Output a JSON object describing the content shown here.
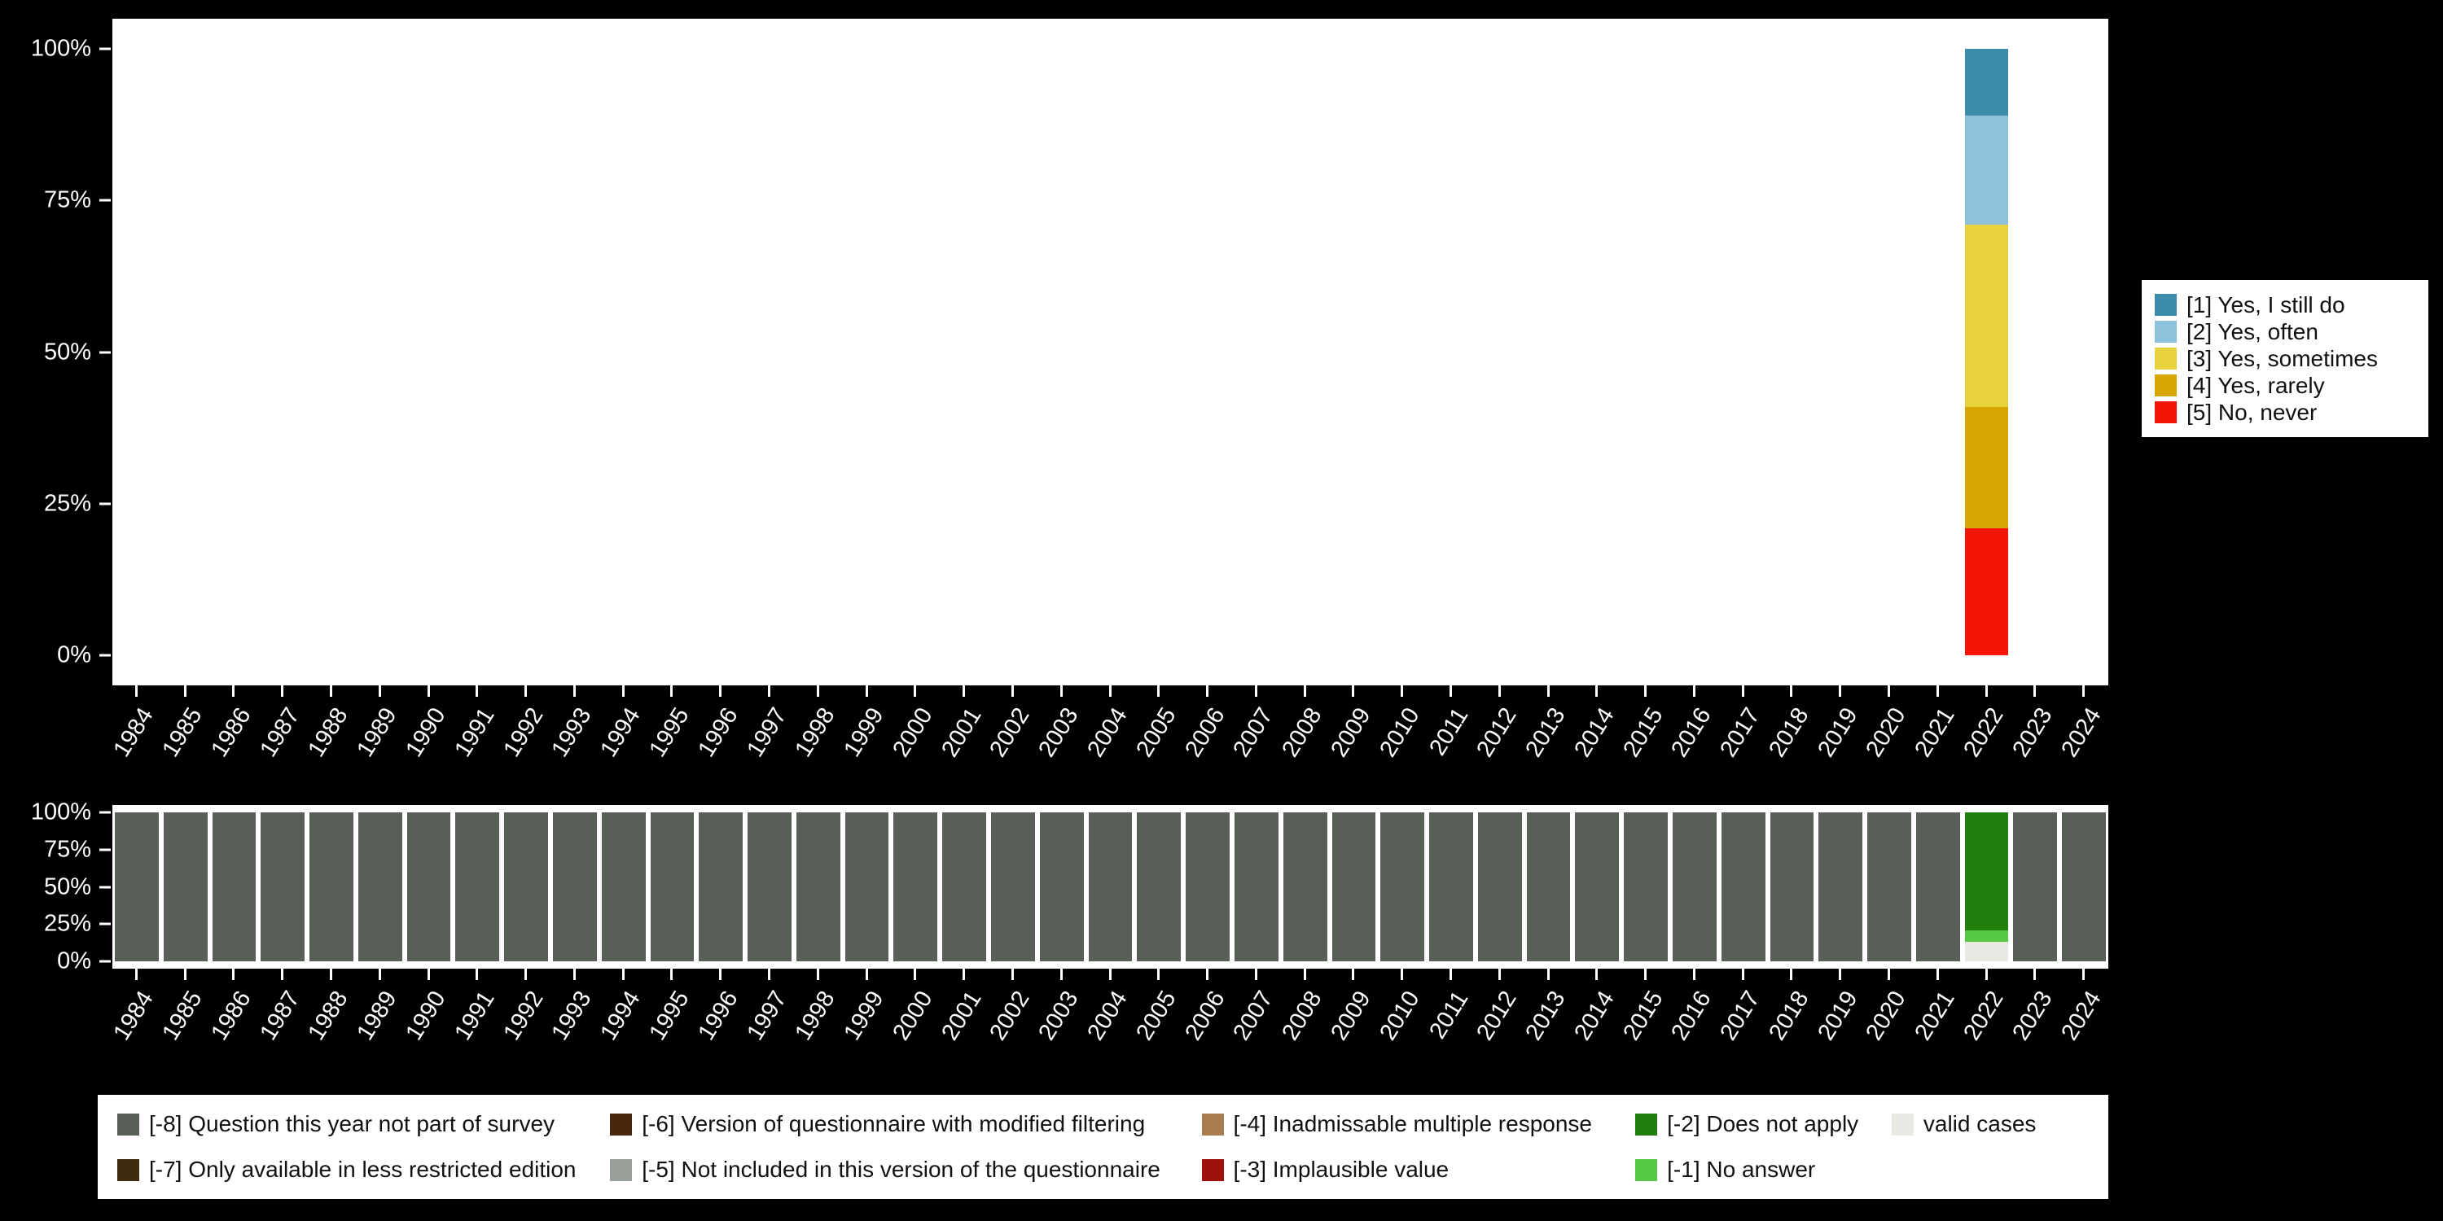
{
  "years": [
    "1984",
    "1985",
    "1986",
    "1987",
    "1988",
    "1989",
    "1990",
    "1991",
    "1992",
    "1993",
    "1994",
    "1995",
    "1996",
    "1997",
    "1998",
    "1999",
    "2000",
    "2001",
    "2002",
    "2003",
    "2004",
    "2005",
    "2006",
    "2007",
    "2008",
    "2009",
    "2010",
    "2011",
    "2012",
    "2013",
    "2014",
    "2015",
    "2016",
    "2017",
    "2018",
    "2019",
    "2020",
    "2021",
    "2022",
    "2023",
    "2024"
  ],
  "chart_data": [
    {
      "type": "bar",
      "stacked": true,
      "title": "",
      "xlabel": "",
      "ylabel": "",
      "ylim": [
        0,
        100
      ],
      "grid": false,
      "legend_position": "right",
      "yticks": [
        {
          "value": 0,
          "label": "0%"
        },
        {
          "value": 25,
          "label": "25%"
        },
        {
          "value": 50,
          "label": "50%"
        },
        {
          "value": 75,
          "label": "75%"
        },
        {
          "value": 100,
          "label": "100%"
        }
      ],
      "series": [
        {
          "name": "[1] Yes, I still do",
          "color": "#3e8cab",
          "values": {
            "2022": 11
          }
        },
        {
          "name": "[2] Yes, often",
          "color": "#8dc3da",
          "values": {
            "2022": 18
          }
        },
        {
          "name": "[3] Yes, sometimes",
          "color": "#e8d23c",
          "values": {
            "2022": 30
          }
        },
        {
          "name": "[4] Yes, rarely",
          "color": "#d5a700",
          "values": {
            "2022": 20
          }
        },
        {
          "name": "[5] No, never",
          "color": "#f31508",
          "values": {
            "2022": 21
          }
        }
      ]
    },
    {
      "type": "bar",
      "stacked": true,
      "title": "",
      "xlabel": "",
      "ylabel": "",
      "ylim": [
        0,
        100
      ],
      "grid": false,
      "legend_position": "bottom",
      "yticks": [
        {
          "value": 0,
          "label": "0%"
        },
        {
          "value": 25,
          "label": "25%"
        },
        {
          "value": 50,
          "label": "50%"
        },
        {
          "value": 75,
          "label": "75%"
        },
        {
          "value": 100,
          "label": "100%"
        }
      ],
      "series": [
        {
          "name": "[-8] Question this year not part of survey",
          "color": "#575f57",
          "values": {
            "default": 100,
            "2022": 0
          }
        },
        {
          "name": "[-7] Only available in less restricted edition",
          "color": "#402a12",
          "values": {}
        },
        {
          "name": "[-6] Version of questionnaire with modified filtering",
          "color": "#47280a",
          "values": {}
        },
        {
          "name": "[-5] Not included in this version of the questionnaire",
          "color": "#9aa19a",
          "values": {}
        },
        {
          "name": "[-4] Inadmissable multiple response",
          "color": "#a87e50",
          "values": {}
        },
        {
          "name": "[-3] Implausible value",
          "color": "#9c120b",
          "values": {}
        },
        {
          "name": "[-2] Does not apply",
          "color": "#217d0c",
          "values": {
            "2022": 79
          }
        },
        {
          "name": "[-1] No answer",
          "color": "#56c944",
          "values": {
            "2022": 8
          }
        },
        {
          "name": "valid cases",
          "color": "#e9e9e3",
          "values": {
            "2022": 13
          }
        }
      ],
      "legend_row_major_order": [
        0,
        2,
        4,
        6,
        8,
        1,
        3,
        5,
        7
      ]
    }
  ]
}
